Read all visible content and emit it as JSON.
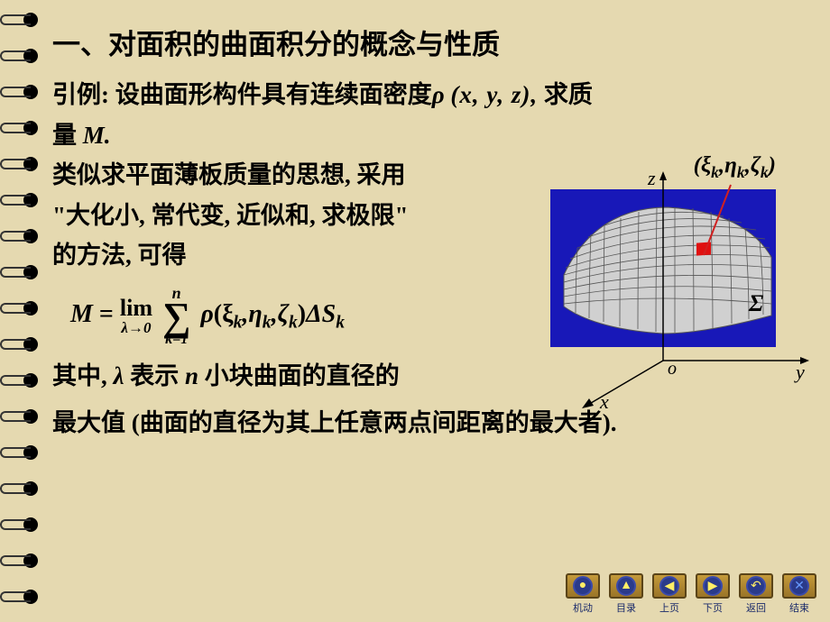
{
  "title": "一、对面积的曲面积分的概念与性质",
  "line1_a": "引例: 设曲面形构件具有连续面密度",
  "line1_b": "求质",
  "line2": "量 ",
  "line3": "类似求平面薄板质量的思想, 采用",
  "line4": "\"大化小, 常代变, 近似和, 求极限\"",
  "line5": "的方法, 可得",
  "line6_a": "其中, ",
  "line6_b": " 表示 ",
  "line6_c": " 小块曲面的直径的",
  "line7": "最大值 (曲面的直径为其上任意两点间距离的最大者).",
  "symbols": {
    "rho": "ρ",
    "xyz": "(x, y, z),",
    "M": "M.",
    "M2": "M",
    "eq": " =",
    "lim": "lim",
    "lambda0": "λ→0",
    "n": "n",
    "k1": "k=1",
    "args": "(ξ",
    "eta": ",η",
    "zeta": ",ζ",
    "close": ")",
    "delta": "ΔS",
    "k": "k",
    "lambda": "λ",
    "nvar": "n",
    "point": "(ξ",
    "z_ax": "z",
    "o_ax": "o",
    "y_ax": "y",
    "x_ax": "x",
    "sigma": "Σ"
  },
  "nav": [
    {
      "label": "机动",
      "glyph": "●",
      "color": "#ffee66"
    },
    {
      "label": "目录",
      "glyph": "▲",
      "color": "#ffee66"
    },
    {
      "label": "上页",
      "glyph": "◀",
      "color": "#ffee66"
    },
    {
      "label": "下页",
      "glyph": "▶",
      "color": "#ffee66"
    },
    {
      "label": "返回",
      "glyph": "↶",
      "color": "#ffee66"
    },
    {
      "label": "结束",
      "glyph": "✕",
      "color": "#6699ff"
    }
  ],
  "diagram": {
    "bg": "#1818b8",
    "surface_fill": "#d0d0d0",
    "surface_line": "#555",
    "dot_fill": "#e01010",
    "axis_color": "#000"
  }
}
